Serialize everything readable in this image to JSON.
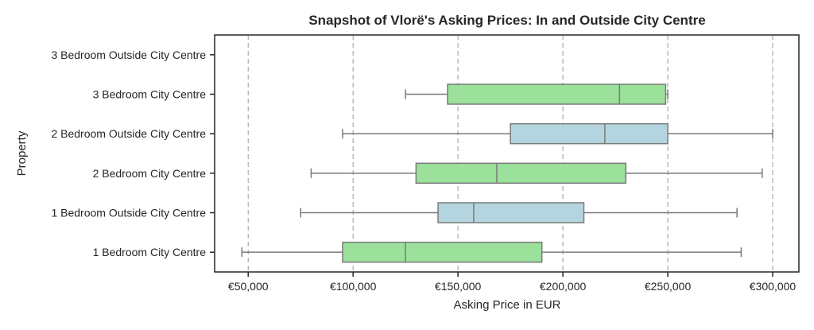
{
  "chart_data": {
    "type": "box",
    "orientation": "horizontal",
    "title": "Snapshot of Vlorë's Asking Prices: In and Outside City Centre",
    "xlabel": "Asking Price in EUR",
    "ylabel": "Property",
    "xlim": [
      34000,
      312500
    ],
    "xticks": [
      50000,
      100000,
      150000,
      200000,
      250000,
      300000
    ],
    "xtick_labels": [
      "€50,000",
      "€100,000",
      "€150,000",
      "€200,000",
      "€250,000",
      "€300,000"
    ],
    "grid": "x dashed",
    "colors": {
      "city_centre": "#9be09b",
      "outside": "#b4d5df",
      "line": "#7a7a7a",
      "grid": "#9a9a9a"
    },
    "categories": [
      {
        "label": "3 Bedroom Outside City Centre",
        "group": "outside",
        "stats": null
      },
      {
        "label": "3 Bedroom City Centre",
        "group": "city_centre",
        "stats": {
          "min": 125000,
          "q1": 145000,
          "median": 227000,
          "q3": 249000,
          "max": 250000
        }
      },
      {
        "label": "2 Bedroom Outside City Centre",
        "group": "outside",
        "stats": {
          "min": 95000,
          "q1": 175000,
          "median": 220000,
          "q3": 250000,
          "max": 300000
        }
      },
      {
        "label": "2 Bedroom City Centre",
        "group": "city_centre",
        "stats": {
          "min": 80000,
          "q1": 130000,
          "median": 168500,
          "q3": 230000,
          "max": 295000
        }
      },
      {
        "label": "1 Bedroom Outside City Centre",
        "group": "outside",
        "stats": {
          "min": 75000,
          "q1": 140500,
          "median": 157500,
          "q3": 210000,
          "max": 283000
        }
      },
      {
        "label": "1 Bedroom City Centre",
        "group": "city_centre",
        "stats": {
          "min": 47000,
          "q1": 95000,
          "median": 125000,
          "q3": 190000,
          "max": 285000
        }
      }
    ]
  }
}
